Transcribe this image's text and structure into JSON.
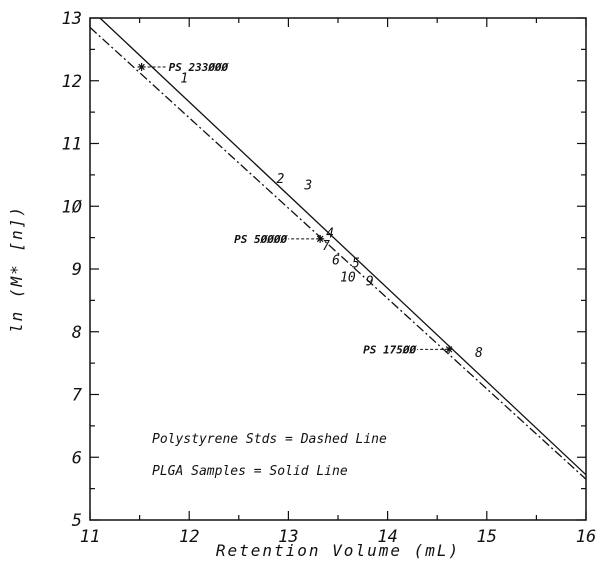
{
  "chart_data": {
    "type": "line",
    "title": "",
    "xlabel": "Retention Volume  (mL)",
    "ylabel": "ln  (M* [n])",
    "xlim": [
      11,
      16
    ],
    "ylim": [
      5,
      13
    ],
    "xticks": [
      "11",
      "12",
      "13",
      "14",
      "15",
      "16"
    ],
    "yticks": [
      "5",
      "6",
      "7",
      "8",
      "9",
      "1Ø",
      "11",
      "12",
      "13"
    ],
    "grid": false,
    "series": [
      {
        "name": "PLGA Samples",
        "style": "solid",
        "x": [
          11.1,
          16.0
        ],
        "y": [
          13.0,
          5.72
        ]
      },
      {
        "name": "Polystyrene Stds",
        "style": "dashdot",
        "x": [
          11.0,
          16.0
        ],
        "y": [
          12.85,
          5.65
        ]
      }
    ],
    "standards": [
      {
        "label": "PS 233ØØØ",
        "x": 11.52,
        "y": 12.22
      },
      {
        "label": "PS 5ØØØØ",
        "x": 13.32,
        "y": 9.48
      },
      {
        "label": "PS 175ØØ",
        "x": 14.62,
        "y": 7.72
      }
    ],
    "samples": [
      {
        "label": "1",
        "x": 11.95,
        "y": 12.05
      },
      {
        "label": "2",
        "x": 12.92,
        "y": 10.45
      },
      {
        "label": "3",
        "x": 13.2,
        "y": 10.35
      },
      {
        "label": "4",
        "x": 13.42,
        "y": 9.58
      },
      {
        "label": "5",
        "x": 13.68,
        "y": 9.1
      },
      {
        "label": "6",
        "x": 13.48,
        "y": 9.15
      },
      {
        "label": "7",
        "x": 13.38,
        "y": 9.38
      },
      {
        "label": "8",
        "x": 14.92,
        "y": 7.68
      },
      {
        "label": "9",
        "x": 13.82,
        "y": 8.82
      },
      {
        "label": "10",
        "x": 13.6,
        "y": 8.88
      }
    ],
    "annotations": [
      "Polystyrene Stds = Dashed Line",
      "PLGA Samples = Solid Line"
    ]
  }
}
